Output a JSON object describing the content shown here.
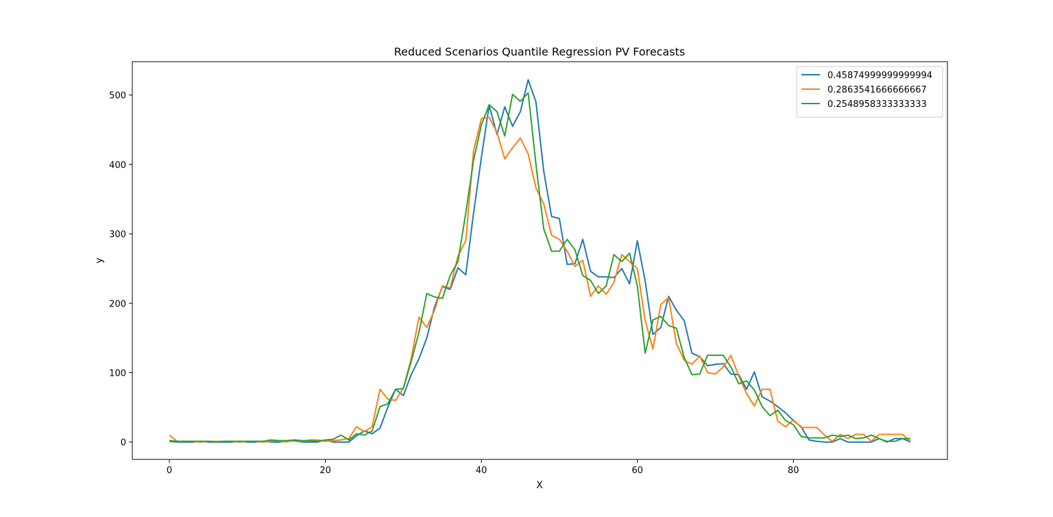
{
  "chart_data": {
    "type": "line",
    "title": "Reduced Scenarios Quantile Regression PV Forecasts",
    "xlabel": "X",
    "ylabel": "y",
    "xlim": [
      -4.75,
      99.75
    ],
    "ylim": [
      -25,
      548
    ],
    "xticks": [
      0,
      20,
      40,
      60,
      80
    ],
    "yticks": [
      0,
      100,
      200,
      300,
      400,
      500
    ],
    "grid": false,
    "legend_position": "top-right",
    "x": [
      0,
      1,
      2,
      3,
      4,
      5,
      6,
      7,
      8,
      9,
      10,
      11,
      12,
      13,
      14,
      15,
      16,
      17,
      18,
      19,
      20,
      21,
      22,
      23,
      24,
      25,
      26,
      27,
      28,
      29,
      30,
      31,
      32,
      33,
      34,
      35,
      36,
      37,
      38,
      39,
      40,
      41,
      42,
      43,
      44,
      45,
      46,
      47,
      48,
      49,
      50,
      51,
      52,
      53,
      54,
      55,
      56,
      57,
      58,
      59,
      60,
      61,
      62,
      63,
      64,
      65,
      66,
      67,
      68,
      69,
      70,
      71,
      72,
      73,
      74,
      75,
      76,
      77,
      78,
      79,
      80,
      81,
      82,
      83,
      84,
      85,
      86,
      87,
      88,
      89,
      90,
      91,
      92,
      93,
      94,
      95
    ],
    "series": [
      {
        "name": "0.45874999999999994",
        "color": "#1f77b4",
        "values": [
          1,
          0,
          0,
          0,
          1,
          0,
          0,
          0,
          0,
          1,
          0,
          0,
          1,
          0,
          0,
          1,
          2,
          0,
          0,
          0,
          3,
          0,
          0,
          0,
          9,
          16,
          12,
          20,
          50,
          76,
          67,
          97,
          120,
          150,
          195,
          224,
          220,
          251,
          241,
          330,
          410,
          485,
          443,
          483,
          455,
          476,
          522,
          490,
          390,
          325,
          322,
          256,
          257,
          292,
          246,
          238,
          238,
          237,
          250,
          228,
          290,
          232,
          155,
          165,
          210,
          190,
          175,
          128,
          123,
          110,
          112,
          113,
          98,
          97,
          76,
          101,
          65,
          59,
          51,
          42,
          31,
          22,
          3,
          1,
          0,
          0,
          5,
          0,
          0,
          0,
          0,
          5,
          0,
          5,
          5,
          0
        ]
      },
      {
        "name": "0.2863541666666667",
        "color": "#ff7f0e",
        "values": [
          10,
          1,
          1,
          1,
          0,
          1,
          1,
          1,
          1,
          0,
          1,
          1,
          0,
          1,
          2,
          0,
          3,
          1,
          3,
          3,
          1,
          2,
          3,
          5,
          22,
          15,
          22,
          76,
          62,
          60,
          78,
          120,
          180,
          165,
          190,
          225,
          222,
          268,
          290,
          420,
          466,
          468,
          446,
          408,
          424,
          438,
          415,
          366,
          343,
          298,
          292,
          275,
          253,
          262,
          210,
          225,
          213,
          230,
          270,
          260,
          250,
          175,
          134,
          198,
          208,
          142,
          118,
          112,
          124,
          100,
          98,
          108,
          125,
          95,
          70,
          52,
          76,
          76,
          30,
          22,
          32,
          21,
          21,
          21,
          10,
          1,
          11,
          5,
          11,
          11,
          1,
          11,
          11,
          11,
          11,
          1
        ]
      },
      {
        "name": "0.2548958333333333",
        "color": "#2ca02c",
        "values": [
          2,
          1,
          1,
          1,
          1,
          1,
          0,
          1,
          1,
          1,
          1,
          1,
          1,
          3,
          2,
          2,
          3,
          2,
          2,
          1,
          3,
          4,
          10,
          3,
          12,
          10,
          16,
          51,
          55,
          76,
          77,
          116,
          158,
          214,
          209,
          207,
          240,
          260,
          330,
          406,
          457,
          486,
          476,
          441,
          501,
          491,
          503,
          400,
          307,
          275,
          275,
          292,
          277,
          240,
          233,
          214,
          225,
          270,
          260,
          272,
          225,
          128,
          176,
          181,
          168,
          164,
          122,
          97,
          98,
          125,
          125,
          125,
          108,
          84,
          88,
          75,
          51,
          38,
          46,
          31,
          25,
          8,
          6,
          6,
          6,
          10,
          8,
          10,
          5,
          6,
          10,
          5,
          1,
          1,
          5,
          5
        ]
      }
    ]
  }
}
